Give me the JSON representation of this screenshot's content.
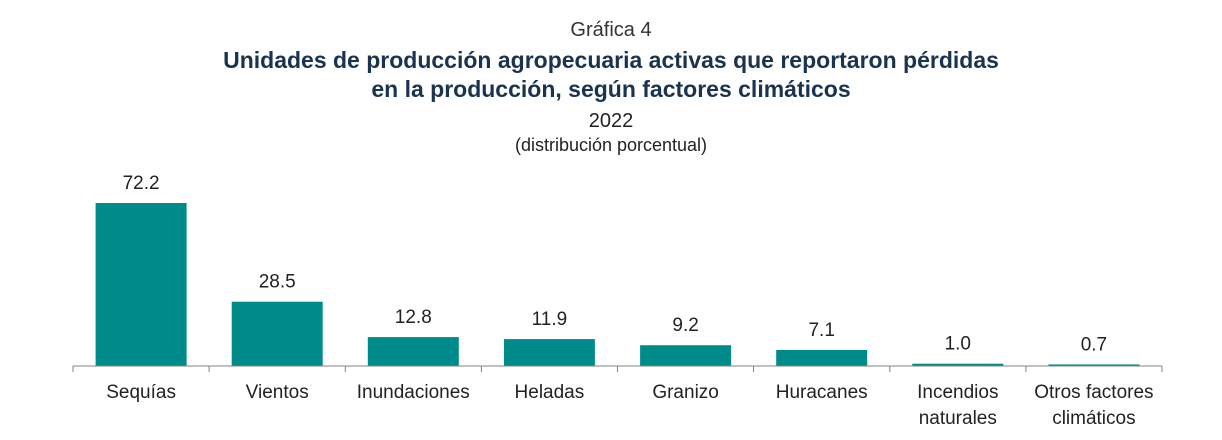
{
  "header": {
    "graph_label": "Gráfica 4",
    "title_line1": "Unidades de producción agropecuaria activas que reportaron pérdidas",
    "title_line2": "en la producción, según factores climáticos",
    "year": "2022",
    "subtitle": "(distribución porcentual)"
  },
  "colors": {
    "bar": "#008B8B",
    "axis": "#808080",
    "title": "#1a3350"
  },
  "chart_data": {
    "type": "bar",
    "title": "Unidades de producción agropecuaria activas que reportaron pérdidas en la producción, según factores climáticos",
    "categories": [
      [
        "Sequías"
      ],
      [
        "Vientos"
      ],
      [
        "Inundaciones"
      ],
      [
        "Heladas"
      ],
      [
        "Granizo"
      ],
      [
        "Huracanes"
      ],
      [
        "Incendios",
        "naturales"
      ],
      [
        "Otros factores",
        "climáticos"
      ]
    ],
    "values": [
      72.2,
      28.5,
      12.8,
      11.9,
      9.2,
      7.1,
      1.0,
      0.7
    ],
    "value_labels": [
      "72.2",
      "28.5",
      "12.8",
      "11.9",
      "9.2",
      "7.1",
      "1.0",
      "0.7"
    ],
    "xlabel": "",
    "ylabel": "",
    "ylim": [
      0,
      72.2
    ],
    "grid": false,
    "legend": "none"
  }
}
